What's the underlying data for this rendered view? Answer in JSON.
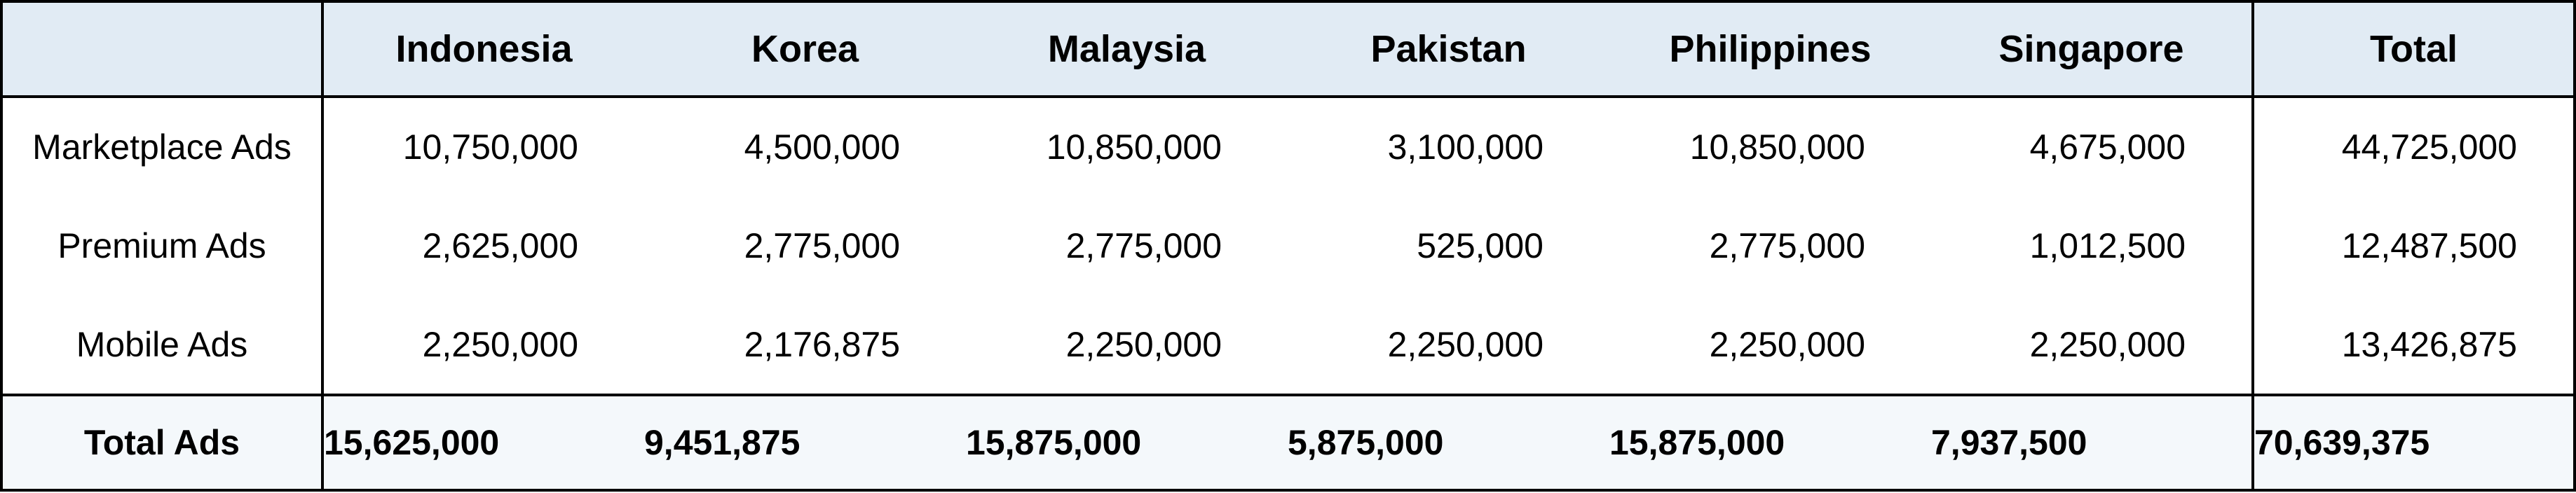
{
  "table": {
    "columns": [
      "",
      "Indonesia",
      "Korea",
      "Malaysia",
      "Pakistan",
      "Philippines",
      "Singapore",
      "Total"
    ],
    "rows": [
      {
        "label": "Marketplace Ads",
        "values": [
          "10,750,000",
          "4,500,000",
          "10,850,000",
          "3,100,000",
          "10,850,000",
          "4,675,000"
        ],
        "total": "44,725,000"
      },
      {
        "label": "Premium Ads",
        "values": [
          "2,625,000",
          "2,775,000",
          "2,775,000",
          "525,000",
          "2,775,000",
          "1,012,500"
        ],
        "total": "12,487,500"
      },
      {
        "label": "Mobile Ads",
        "values": [
          "2,250,000",
          "2,176,875",
          "2,250,000",
          "2,250,000",
          "2,250,000",
          "2,250,000"
        ],
        "total": "13,426,875"
      }
    ],
    "footer": {
      "label": "Total Ads",
      "values": [
        "15,625,000",
        "9,451,875",
        "15,875,000",
        "5,875,000",
        "15,875,000",
        "7,937,500"
      ],
      "total": "70,639,375"
    }
  },
  "colors": {
    "header_bg": "#e1ebf4",
    "footer_bg": "#f4f8fb",
    "border": "#000000"
  }
}
